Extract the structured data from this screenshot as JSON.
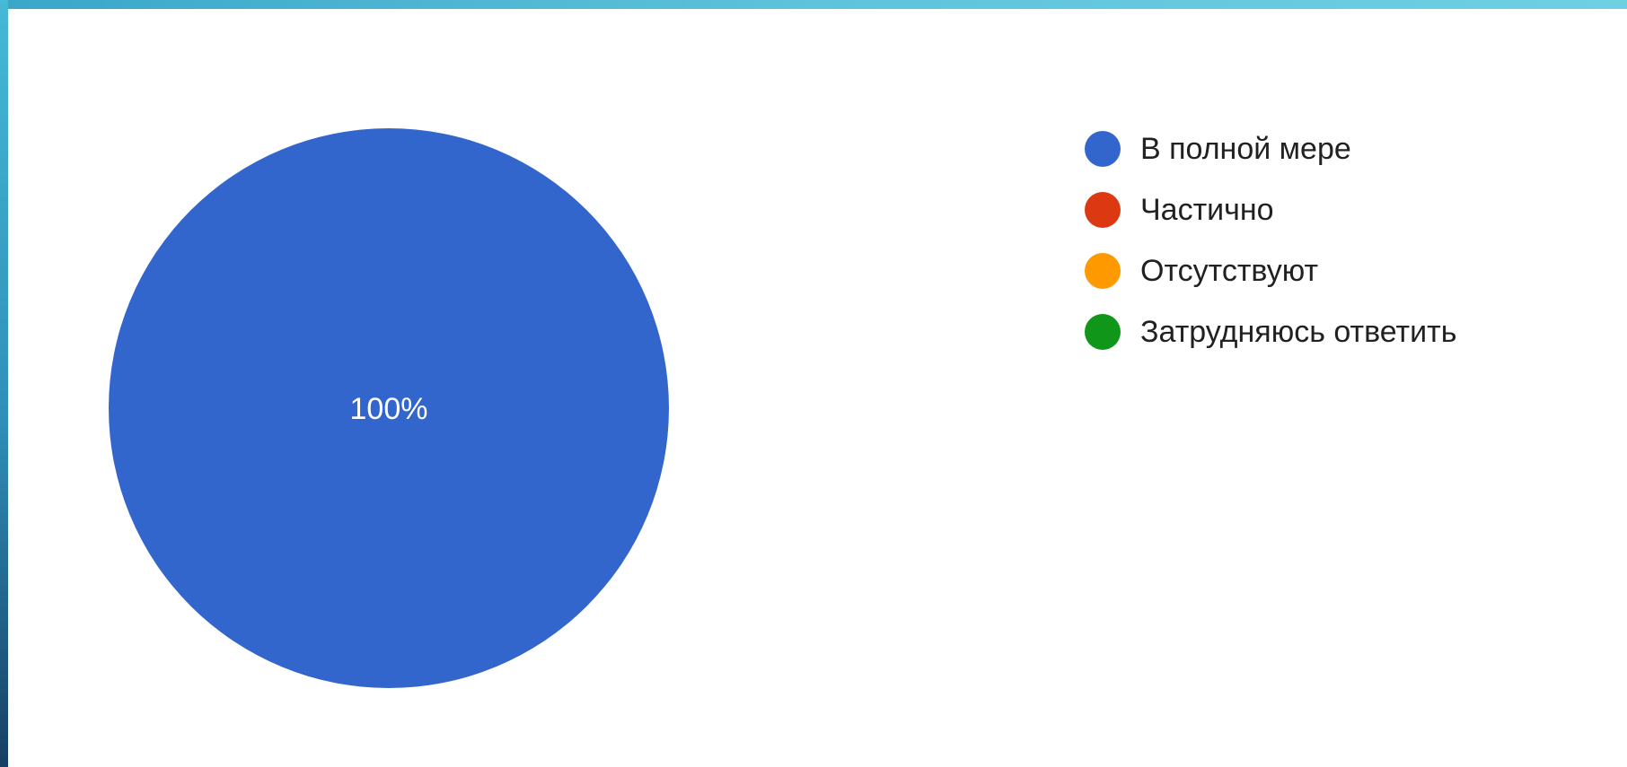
{
  "chart_data": {
    "type": "pie",
    "categories": [
      "В полной мере",
      "Частично",
      "Отсутствуют",
      "Затрудняюсь ответить"
    ],
    "values": [
      100,
      0,
      0,
      0
    ],
    "value_labels": [
      "100%",
      "",
      "",
      ""
    ],
    "colors": [
      "#3366cc",
      "#dc3912",
      "#ff9900",
      "#109618"
    ],
    "legend_position": "right"
  }
}
